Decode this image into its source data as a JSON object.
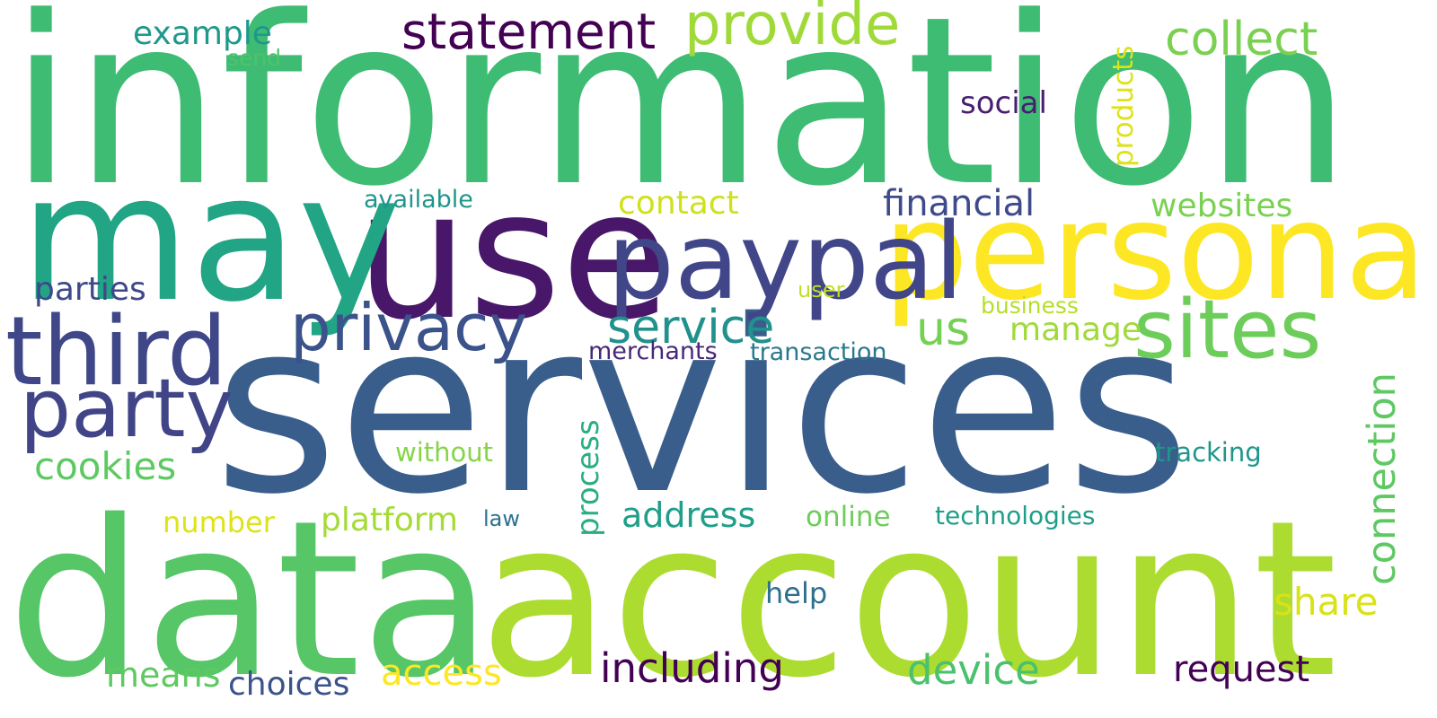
{
  "words": [
    {
      "text": "information",
      "color": "#3ebc73"
    },
    {
      "text": "services",
      "color": "#3a5e8c"
    },
    {
      "text": "account",
      "color": "#addc30"
    },
    {
      "text": "data",
      "color": "#56c667"
    },
    {
      "text": "use",
      "color": "#481769"
    },
    {
      "text": "may",
      "color": "#21a585"
    },
    {
      "text": "personal",
      "color": "#fde725"
    },
    {
      "text": "paypal",
      "color": "#404688"
    },
    {
      "text": "third",
      "color": "#3f4788"
    },
    {
      "text": "party",
      "color": "#414487"
    },
    {
      "text": "sites",
      "color": "#6ccd5a"
    },
    {
      "text": "privacy",
      "color": "#3b528b"
    },
    {
      "text": "statement",
      "color": "#440154"
    },
    {
      "text": "provide",
      "color": "#a0da39"
    },
    {
      "text": "collect",
      "color": "#7ad151"
    },
    {
      "text": "service",
      "color": "#21918c"
    },
    {
      "text": "us",
      "color": "#75d054"
    },
    {
      "text": "connection",
      "color": "#5ec962"
    },
    {
      "text": "including",
      "color": "#440154"
    },
    {
      "text": "device",
      "color": "#4ac16d"
    },
    {
      "text": "cookies",
      "color": "#5ec962"
    },
    {
      "text": "share",
      "color": "#d8e219"
    },
    {
      "text": "financial",
      "color": "#3e4a89"
    },
    {
      "text": "parties",
      "color": "#3e4989"
    },
    {
      "text": "request",
      "color": "#440154"
    },
    {
      "text": "access",
      "color": "#fde725"
    },
    {
      "text": "means",
      "color": "#5ec962"
    },
    {
      "text": "address",
      "color": "#1f9e89"
    },
    {
      "text": "platform",
      "color": "#a5db36"
    },
    {
      "text": "contact",
      "color": "#d0e11c"
    },
    {
      "text": "websites",
      "color": "#7ad151"
    },
    {
      "text": "manage",
      "color": "#a0da39"
    },
    {
      "text": "example",
      "color": "#1f988b"
    },
    {
      "text": "choices",
      "color": "#3b528b"
    },
    {
      "text": "process",
      "color": "#29af7f"
    },
    {
      "text": "products",
      "color": "#dde318"
    },
    {
      "text": "social",
      "color": "#481f70"
    },
    {
      "text": "number",
      "color": "#dde318"
    },
    {
      "text": "help",
      "color": "#2d708e"
    },
    {
      "text": "online",
      "color": "#6ccd5a"
    },
    {
      "text": "technologies",
      "color": "#1f9e89"
    },
    {
      "text": "tracking",
      "color": "#1f968b"
    },
    {
      "text": "without",
      "color": "#86d549"
    },
    {
      "text": "available",
      "color": "#1f968b"
    },
    {
      "text": "merchants",
      "color": "#482878"
    },
    {
      "text": "transaction",
      "color": "#2a788e"
    },
    {
      "text": "business",
      "color": "#b5de2b"
    },
    {
      "text": "user",
      "color": "#c2df23"
    },
    {
      "text": "law",
      "color": "#2c728e"
    },
    {
      "text": "send",
      "color": "#4ec36b"
    }
  ]
}
